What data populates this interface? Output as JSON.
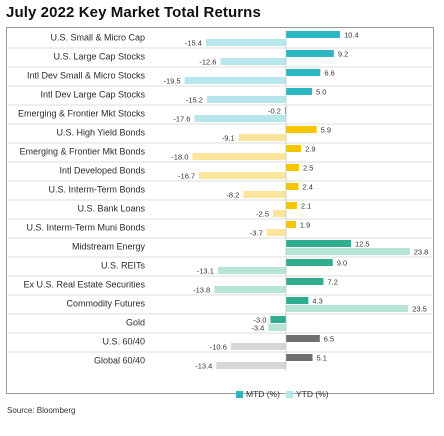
{
  "source": "Source: Bloomberg",
  "chart_data": {
    "type": "bar",
    "orientation": "horizontal",
    "title": "July 2022 Key Market Total Returns",
    "categories": [
      "U.S. Small & Micro Cap",
      "U.S. Large Cap Stocks",
      "Intl Dev Small & Micro Stocks",
      "Intl Dev Large Cap Stocks",
      "Emerging & Frontier Mkt Stocks",
      "U.S. High Yield Bonds",
      "Emerging & Frontier Mkt Bonds",
      "Intl Developed Bonds",
      "U.S. Interm-Term Bonds",
      "U.S. Bank Loans",
      "U.S. Interm-Term Muni Bonds",
      "Midstream Energy",
      "U.S. REITs",
      "Ex U.S. Real Estate Securities",
      "Commodity Futures",
      "Gold",
      "U.S. 60/40",
      "Global 60/40"
    ],
    "groups": [
      "equity",
      "equity",
      "equity",
      "equity",
      "equity",
      "fixed",
      "fixed",
      "fixed",
      "fixed",
      "fixed",
      "fixed",
      "real",
      "real",
      "real",
      "real",
      "real",
      "blend",
      "blend"
    ],
    "series": [
      {
        "name": "MTD (%)",
        "values": [
          10.4,
          9.2,
          6.6,
          5.0,
          -0.2,
          5.9,
          2.9,
          2.5,
          2.4,
          2.1,
          1.9,
          12.5,
          9.0,
          7.2,
          4.3,
          -3.0,
          6.5,
          5.1
        ]
      },
      {
        "name": "YTD (%)",
        "values": [
          -15.4,
          -12.6,
          -19.5,
          -15.2,
          -17.6,
          -9.1,
          -18.0,
          -16.7,
          -8.2,
          -2.5,
          -3.7,
          23.8,
          -13.1,
          -13.8,
          23.5,
          -3.4,
          -10.6,
          -13.4
        ]
      }
    ],
    "value_labels": {
      "mtd": [
        "10.4",
        "9.2",
        "6.6",
        "5.0",
        "-0.2",
        "5.9",
        "2.9",
        "2.5",
        "2.4",
        "2.1",
        "1.9",
        "12.5",
        "9.0",
        "7.2",
        "4.3",
        "-3.0",
        "6.5",
        "5.1"
      ],
      "ytd": [
        "-15.4",
        "-12.6",
        "-19.5",
        "-15.2",
        "-17.6",
        "-9.1",
        "-18.0",
        "-16.7",
        "-8.2",
        "-2.5",
        "-3.7",
        "23.8",
        "-13.1",
        "-13.8",
        "23.5",
        "-3.4",
        "-10.6",
        "-13.4"
      ]
    },
    "colors": {
      "equity": {
        "mtd": "#2cb7c3",
        "ytd": "#b7e6ec"
      },
      "fixed": {
        "mtd": "#f7c500",
        "ytd": "#fbe59a"
      },
      "real": {
        "mtd": "#2fad8e",
        "ytd": "#b6e4d6"
      },
      "blend": {
        "mtd": "#6e6e6e",
        "ytd": "#d6d6d6"
      }
    },
    "legend_position": "bottom",
    "grid": false
  }
}
